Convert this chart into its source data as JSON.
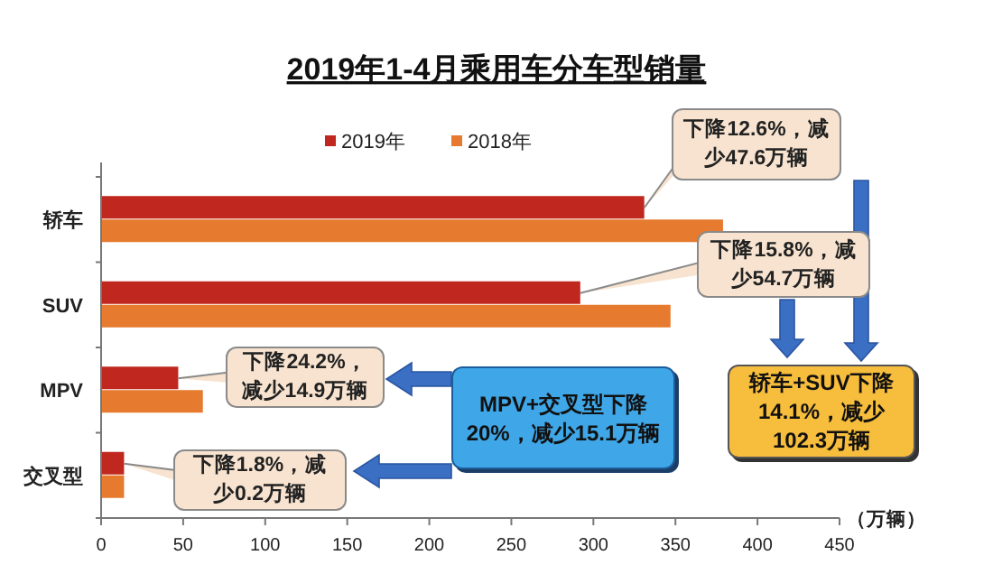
{
  "chart_data": {
    "type": "bar",
    "orientation": "horizontal",
    "title": "2019年1-4月乘用车分车型销量",
    "xlabel": "（万辆）",
    "categories": [
      "轿车",
      "SUV",
      "MPV",
      "交叉型"
    ],
    "series": [
      {
        "name": "2019年",
        "color": "#c0281f",
        "values": [
          331,
          292,
          47,
          14
        ]
      },
      {
        "name": "2018年",
        "color": "#e67a2e",
        "values": [
          379,
          347,
          62,
          14
        ]
      }
    ],
    "xlim": [
      0,
      450
    ],
    "xticks": [
      0,
      50,
      100,
      150,
      200,
      250,
      300,
      350,
      400,
      450
    ],
    "legend": "top",
    "annotations": [
      "下降12.6%，减少47.6万辆",
      "下降15.8%，减少54.7万辆",
      "下降24.2%，减少14.9万辆",
      "下降1.8%，减少0.2万辆",
      "MPV+交叉型下降20%，减少15.1万辆",
      "轿车+SUV下降14.1%，减少102.3万辆"
    ]
  }
}
